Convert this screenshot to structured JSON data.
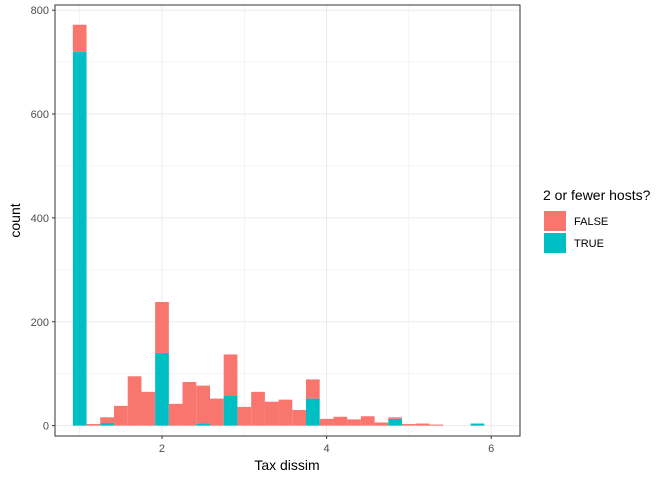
{
  "chart_data": {
    "type": "bar",
    "subtype": "stacked-histogram",
    "xlabel": "Tax dissim",
    "ylabel": "count",
    "xlim": [
      0.7,
      6.35
    ],
    "ylim": [
      -20,
      810
    ],
    "x_ticks": [
      2,
      4,
      6
    ],
    "y_ticks": [
      0,
      200,
      400,
      600,
      800
    ],
    "bin_width": 0.1667,
    "grid": true,
    "legend_placement": "right",
    "legend": {
      "title": "2 or fewer hosts?",
      "entries": [
        {
          "label": "FALSE",
          "color": "#F8766D"
        },
        {
          "label": "TRUE",
          "color": "#00BFC4"
        }
      ]
    },
    "x": [
      1.0,
      1.167,
      1.333,
      1.5,
      1.667,
      1.833,
      2.0,
      2.167,
      2.333,
      2.5,
      2.667,
      2.833,
      3.0,
      3.167,
      3.333,
      3.5,
      3.667,
      3.833,
      4.0,
      4.167,
      4.333,
      4.5,
      4.667,
      4.833,
      5.0,
      5.167,
      5.333,
      5.5,
      5.667,
      5.833,
      6.0
    ],
    "series": [
      {
        "name": "TRUE",
        "values": [
          720,
          0,
          5,
          0,
          0,
          0,
          140,
          0,
          0,
          4,
          0,
          57,
          0,
          0,
          0,
          0,
          0,
          52,
          0,
          0,
          0,
          0,
          0,
          13,
          0,
          0,
          0,
          0,
          0,
          4,
          0
        ]
      },
      {
        "name": "FALSE",
        "values": [
          52,
          3,
          11,
          38,
          95,
          65,
          98,
          42,
          84,
          73,
          52,
          80,
          36,
          65,
          46,
          50,
          30,
          37,
          13,
          17,
          12,
          18,
          6,
          3,
          3,
          4,
          2,
          0,
          0,
          0,
          0
        ]
      }
    ]
  }
}
